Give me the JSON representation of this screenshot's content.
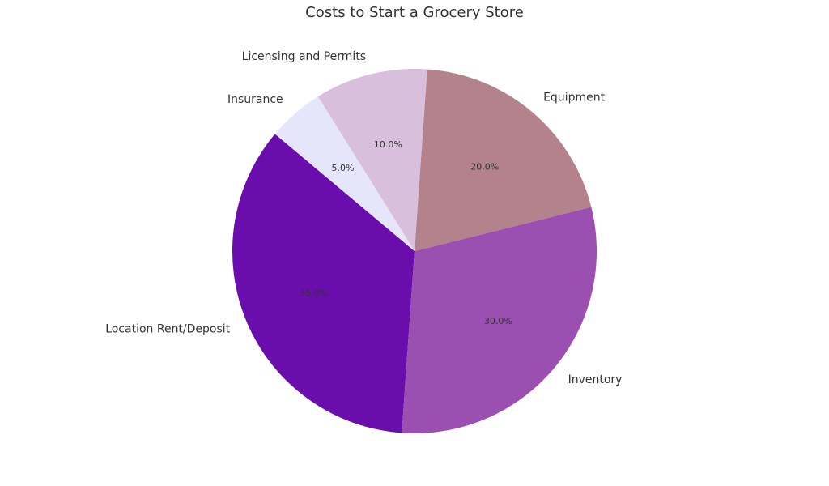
{
  "chart_data": {
    "type": "pie",
    "title": "Costs to Start a Grocery Store",
    "categories": [
      "Location Rent/Deposit",
      "Inventory",
      "Equipment",
      "Licensing and Permits",
      "Insurance"
    ],
    "values": [
      35,
      30,
      20,
      10,
      5
    ],
    "value_labels": [
      "35.0%",
      "30.0%",
      "20.0%",
      "10.0%",
      "5.0%"
    ],
    "colors": [
      "#6a0dad",
      "#9b4fb1",
      "#b3828a",
      "#d8bfdb",
      "#e6e6fa"
    ]
  }
}
